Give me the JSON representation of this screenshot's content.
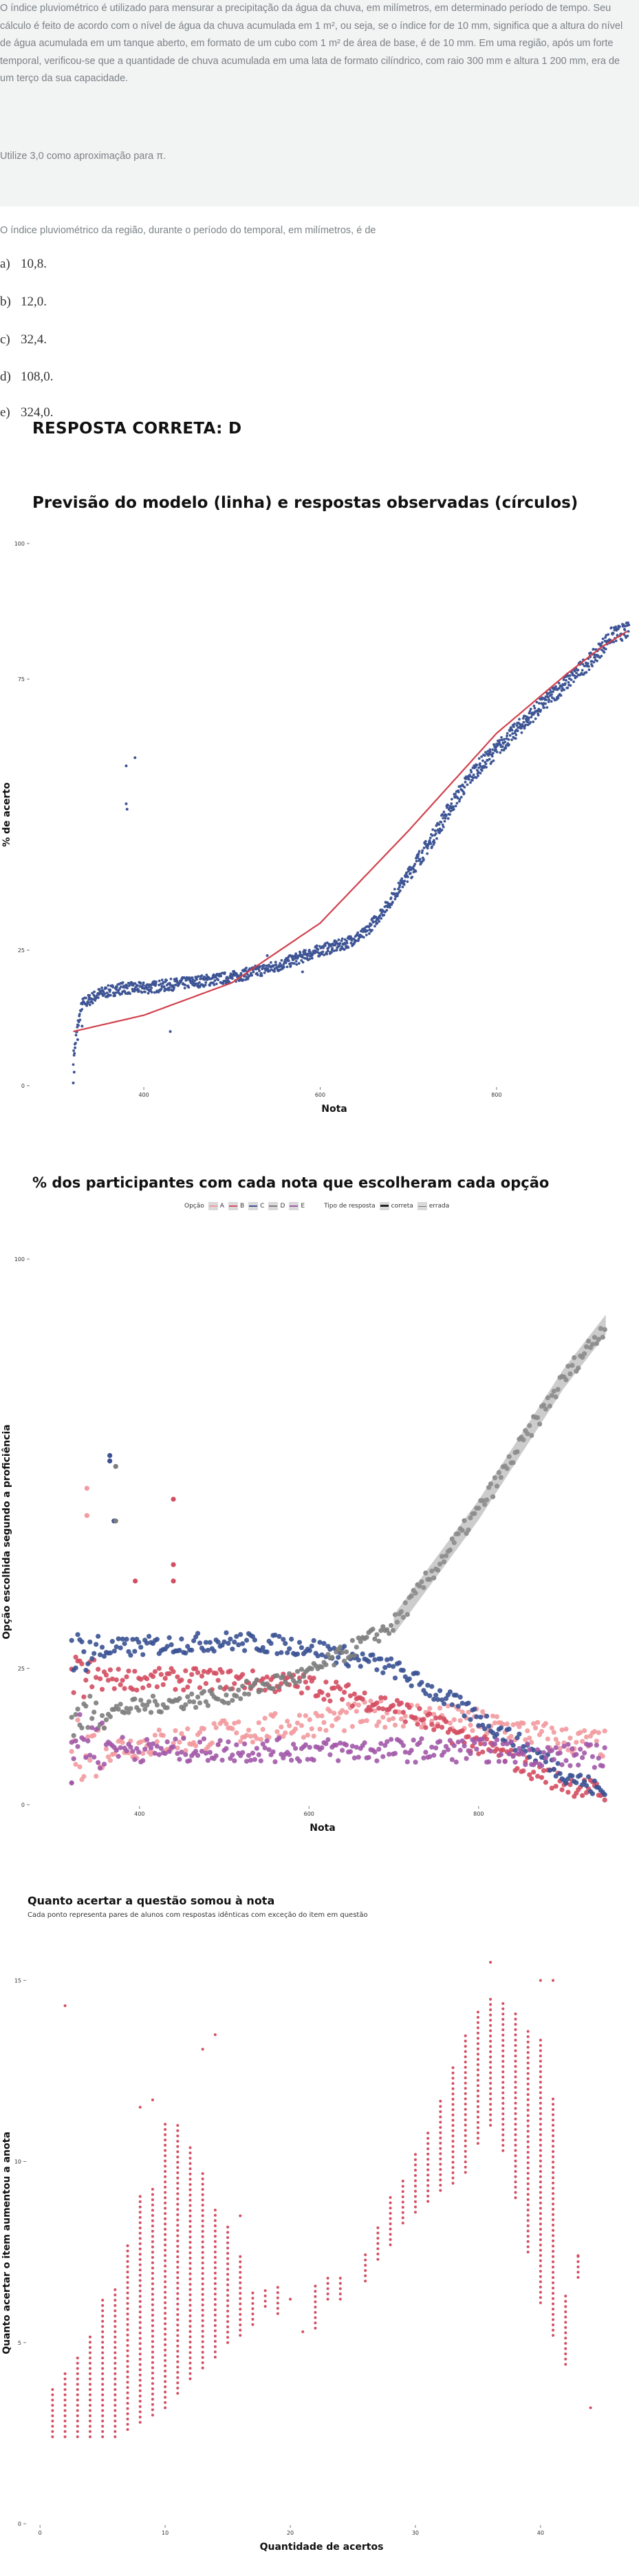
{
  "question": {
    "text": "O índice pluviométrico é utilizado para mensurar a precipitação da água da chuva, em milímetros, em determinado período de tempo. Seu cálculo é feito de acordo com o nível de água da chuva acumulada em 1 m², ou seja, se o índice for de 10 mm, significa que a altura do nível de água acumulada em um tanque aberto, em formato de um cubo com 1 m² de área de base, é de 10 mm. Em uma região, após um forte temporal, verificou-se que a quantidade de chuva acumulada em uma lata de formato cilíndrico, com raio 300 mm e altura 1 200 mm, era de um terço da sua capacidade.",
    "note": "Utilize 3,0 como aproximação para π.",
    "prompt": "O índice pluviométrico da região, durante o período do temporal, em milímetros, é de",
    "options": [
      {
        "key": "a)",
        "text": "10,8."
      },
      {
        "key": "b)",
        "text": "12,0."
      },
      {
        "key": "c)",
        "text": "32,4."
      },
      {
        "key": "d)",
        "text": "108,0."
      },
      {
        "key": "e)",
        "text": "324,0."
      }
    ],
    "answer": "RESPOSTA CORRETA: D"
  },
  "colors": {
    "question_bg": "#f2f3f3",
    "model_line": "#d1404d",
    "observed_points": "#3e5595",
    "A": "#f29a9e",
    "B": "#d44e62",
    "C": "#3b5293",
    "D": "#7d7d7d",
    "E": "#a259a8",
    "scatter3": "#d44e62"
  },
  "chart_data": [
    {
      "type": "line",
      "title": "Previsão do modelo (linha) e respostas observadas (círculos)",
      "xlabel": "Nota",
      "ylabel": "% de acerto",
      "xlim": [
        272,
        960
      ],
      "ylim": [
        0,
        100
      ],
      "xticks": [
        400,
        600,
        800
      ],
      "xtick_labels": [
        "400",
        "600",
        "800"
      ],
      "yticks": [
        0,
        25,
        75,
        100
      ],
      "ytick_labels": [
        "0",
        "25",
        "75",
        "100"
      ],
      "grid": false,
      "series": [
        {
          "kind": "line",
          "x": [
            320,
            400,
            500,
            600,
            700,
            800,
            880,
            920,
            950
          ],
          "y": [
            10,
            13,
            19,
            30,
            47,
            65,
            76,
            81,
            84
          ]
        },
        {
          "kind": "points",
          "x": [
            320,
            325,
            330,
            340,
            350,
            375,
            400,
            450,
            500,
            550,
            600,
            625,
            650,
            675,
            700,
            725,
            750,
            775,
            800,
            825,
            850,
            870,
            890,
            910,
            930,
            950
          ],
          "y": [
            5,
            11,
            15,
            16,
            17,
            18,
            18,
            19,
            20,
            22,
            25,
            26,
            28,
            33,
            39,
            45,
            52,
            58,
            62,
            66,
            70,
            73,
            76,
            79,
            83,
            84
          ]
        }
      ]
    },
    {
      "type": "line",
      "title": "% dos participantes com cada nota que escolheram cada opção",
      "xlabel": "Nota",
      "ylabel": "Opção escolhida segundo a proficiência",
      "xlim": [
        272,
        960
      ],
      "ylim": [
        0,
        100
      ],
      "xticks": [
        400,
        600,
        800
      ],
      "xtick_labels": [
        "400",
        "600",
        "800"
      ],
      "yticks": [
        0,
        25,
        100
      ],
      "ytick_labels": [
        "0",
        "25",
        "100"
      ],
      "legend_title": "Opção",
      "legend": [
        "A",
        "B",
        "C",
        "D",
        "E"
      ],
      "legend_type_title": "Tipo de resposta",
      "legend_type": [
        "correta",
        "errada"
      ],
      "legend_position": "top",
      "series": [
        {
          "name": "A",
          "x": [
            320,
            400,
            500,
            600,
            700,
            800,
            900,
            950
          ],
          "y": [
            10,
            11,
            13,
            15,
            17,
            15,
            12,
            11
          ]
        },
        {
          "name": "B",
          "x": [
            320,
            400,
            500,
            600,
            700,
            800,
            900,
            950
          ],
          "y": [
            23,
            23,
            23,
            22,
            18,
            11,
            4,
            2
          ]
        },
        {
          "name": "C",
          "x": [
            320,
            400,
            500,
            600,
            700,
            800,
            900,
            950
          ],
          "y": [
            28,
            29,
            30,
            29,
            25,
            16,
            6,
            2
          ]
        },
        {
          "name": "D",
          "x": [
            320,
            400,
            500,
            600,
            700,
            800,
            900,
            950
          ],
          "y": [
            16,
            18,
            20,
            24,
            33,
            54,
            78,
            88
          ]
        },
        {
          "name": "E",
          "x": [
            320,
            400,
            500,
            600,
            700,
            800,
            900,
            950
          ],
          "y": [
            12,
            10,
            10,
            10,
            10,
            10,
            9,
            9
          ]
        }
      ]
    },
    {
      "type": "scatter",
      "title": "Quanto acertar a questão somou à nota",
      "subtitle": "Cada ponto representa pares de alunos com respostas idênticas com exceção do item em questão",
      "xlabel": "Quantidade de acertos",
      "ylabel": "Quanto acertar o item aumentou a anota",
      "xlim": [
        -1,
        46
      ],
      "ylim": [
        0,
        15.5
      ],
      "xticks": [
        0,
        10,
        20,
        30,
        40
      ],
      "xtick_labels": [
        "0",
        "10",
        "20",
        "30",
        "40"
      ],
      "yticks": [
        0,
        5,
        10,
        15
      ],
      "ytick_labels": [
        "0",
        "5",
        "10",
        "15"
      ],
      "columns": [
        {
          "x": 1,
          "ymin": 2.4,
          "ymax": 3.8
        },
        {
          "x": 2,
          "ymin": 2.4,
          "ymax": 4.2
        },
        {
          "x": 3,
          "ymin": 2.4,
          "ymax": 4.7
        },
        {
          "x": 4,
          "ymin": 2.4,
          "ymax": 5.2
        },
        {
          "x": 5,
          "ymin": 2.4,
          "ymax": 6.2
        },
        {
          "x": 6,
          "ymin": 2.4,
          "ymax": 6.6
        },
        {
          "x": 7,
          "ymin": 2.6,
          "ymax": 7.7
        },
        {
          "x": 8,
          "ymin": 2.8,
          "ymax": 9.1
        },
        {
          "x": 9,
          "ymin": 3.0,
          "ymax": 9.3
        },
        {
          "x": 10,
          "ymin": 3.2,
          "ymax": 11.1
        },
        {
          "x": 11,
          "ymin": 3.6,
          "ymax": 11.1
        },
        {
          "x": 12,
          "ymin": 4.0,
          "ymax": 10.4
        },
        {
          "x": 13,
          "ymin": 4.3,
          "ymax": 9.7
        },
        {
          "x": 14,
          "ymin": 4.6,
          "ymax": 8.8
        },
        {
          "x": 15,
          "ymin": 5.0,
          "ymax": 8.2
        },
        {
          "x": 16,
          "ymin": 5.2,
          "ymax": 7.5
        },
        {
          "x": 17,
          "ymin": 5.5,
          "ymax": 6.5
        },
        {
          "x": 18,
          "ymin": 6.0,
          "ymax": 6.5
        },
        {
          "x": 19,
          "ymin": 5.8,
          "ymax": 6.6
        },
        {
          "x": 22,
          "ymin": 5.4,
          "ymax": 6.7
        },
        {
          "x": 23,
          "ymin": 6.2,
          "ymax": 6.9
        },
        {
          "x": 24,
          "ymin": 6.2,
          "ymax": 6.9
        },
        {
          "x": 26,
          "ymin": 6.7,
          "ymax": 7.5
        },
        {
          "x": 27,
          "ymin": 7.3,
          "ymax": 8.3
        },
        {
          "x": 28,
          "ymin": 7.7,
          "ymax": 9.1
        },
        {
          "x": 29,
          "ymin": 8.3,
          "ymax": 9.6
        },
        {
          "x": 30,
          "ymin": 8.6,
          "ymax": 10.2
        },
        {
          "x": 31,
          "ymin": 8.9,
          "ymax": 10.9
        },
        {
          "x": 32,
          "ymin": 9.2,
          "ymax": 11.8
        },
        {
          "x": 33,
          "ymin": 9.4,
          "ymax": 12.7
        },
        {
          "x": 34,
          "ymin": 9.7,
          "ymax": 13.5
        },
        {
          "x": 35,
          "ymin": 10.5,
          "ymax": 14.2
        },
        {
          "x": 36,
          "ymin": 11.0,
          "ymax": 14.6
        },
        {
          "x": 37,
          "ymin": 10.3,
          "ymax": 14.4
        },
        {
          "x": 38,
          "ymin": 9.0,
          "ymax": 14.1
        },
        {
          "x": 39,
          "ymin": 7.5,
          "ymax": 13.6
        },
        {
          "x": 40,
          "ymin": 6.1,
          "ymax": 13.4
        },
        {
          "x": 41,
          "ymin": 5.2,
          "ymax": 11.8
        },
        {
          "x": 42,
          "ymin": 4.4,
          "ymax": 6.4
        },
        {
          "x": 43,
          "ymin": 6.8,
          "ymax": 7.4
        }
      ],
      "points": [
        [
          2,
          14.3
        ],
        [
          8,
          11.5
        ],
        [
          9,
          11.7
        ],
        [
          13,
          13.1
        ],
        [
          14,
          13.5
        ],
        [
          16,
          8.5
        ],
        [
          20,
          6.2
        ],
        [
          21,
          5.3
        ],
        [
          36,
          15.5
        ],
        [
          40,
          15.0
        ],
        [
          41,
          15.0
        ],
        [
          43,
          7.4
        ],
        [
          44,
          3.2
        ]
      ]
    }
  ]
}
